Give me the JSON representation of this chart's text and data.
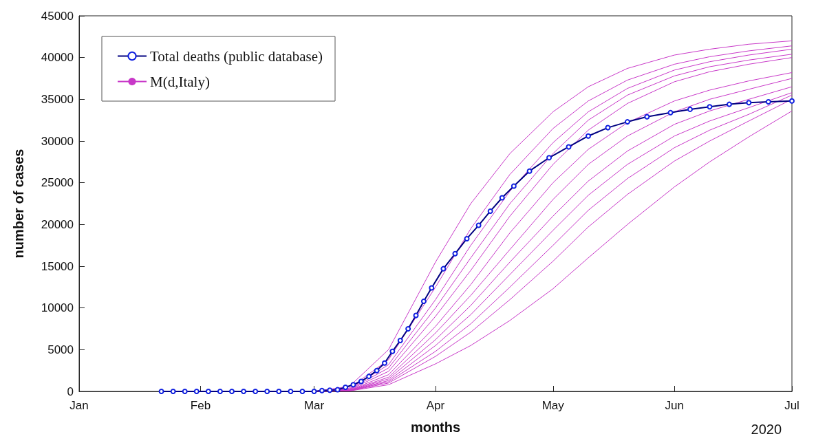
{
  "chart_data": {
    "type": "line",
    "xlabel": "months",
    "ylabel": "number of cases",
    "annotations": [
      "2020"
    ],
    "xlim": [
      "2020-01-01",
      "2020-07-01"
    ],
    "xticks": [
      {
        "value": "2020-01-01",
        "label": "Jan"
      },
      {
        "value": "2020-02-01",
        "label": "Feb"
      },
      {
        "value": "2020-03-01",
        "label": "Mar"
      },
      {
        "value": "2020-04-01",
        "label": "Apr"
      },
      {
        "value": "2020-05-01",
        "label": "May"
      },
      {
        "value": "2020-06-01",
        "label": "Jun"
      },
      {
        "value": "2020-07-01",
        "label": "Jul"
      }
    ],
    "ylim": [
      0,
      45000
    ],
    "yticks": [
      0,
      5000,
      10000,
      15000,
      20000,
      25000,
      30000,
      35000,
      40000,
      45000
    ],
    "grid": false,
    "legend": "top left",
    "series": [
      {
        "name": "Total deaths (public database)",
        "color": "#1020e0",
        "marker": "circle",
        "x": [
          "2020-01-22",
          "2020-01-25",
          "2020-01-28",
          "2020-01-31",
          "2020-02-03",
          "2020-02-06",
          "2020-02-09",
          "2020-02-12",
          "2020-02-15",
          "2020-02-18",
          "2020-02-21",
          "2020-02-24",
          "2020-02-27",
          "2020-03-01",
          "2020-03-03",
          "2020-03-05",
          "2020-03-07",
          "2020-03-09",
          "2020-03-11",
          "2020-03-13",
          "2020-03-15",
          "2020-03-17",
          "2020-03-19",
          "2020-03-21",
          "2020-03-23",
          "2020-03-25",
          "2020-03-27",
          "2020-03-29",
          "2020-03-31",
          "2020-04-03",
          "2020-04-06",
          "2020-04-09",
          "2020-04-12",
          "2020-04-15",
          "2020-04-18",
          "2020-04-21",
          "2020-04-25",
          "2020-04-30",
          "2020-05-05",
          "2020-05-10",
          "2020-05-15",
          "2020-05-20",
          "2020-05-25",
          "2020-05-31",
          "2020-06-05",
          "2020-06-10",
          "2020-06-15",
          "2020-06-20",
          "2020-06-25",
          "2020-07-01"
        ],
        "values": [
          0,
          0,
          0,
          0,
          0,
          0,
          0,
          0,
          0,
          0,
          0,
          0,
          0,
          0,
          100,
          150,
          200,
          500,
          800,
          1200,
          1800,
          2500,
          3400,
          4800,
          6100,
          7500,
          9100,
          10800,
          12400,
          14700,
          16500,
          18300,
          19900,
          21600,
          23200,
          24600,
          26400,
          28000,
          29300,
          30600,
          31600,
          32300,
          32900,
          33400,
          33800,
          34100,
          34400,
          34600,
          34700,
          34800
        ]
      },
      {
        "name": "M(d,Italy)",
        "color": "#c838c8",
        "marker": "none",
        "x": [
          "2020-03-01",
          "2020-03-10",
          "2020-03-20",
          "2020-04-01",
          "2020-04-10",
          "2020-04-20",
          "2020-05-01",
          "2020-05-10",
          "2020-05-20",
          "2020-06-01",
          "2020-06-10",
          "2020-06-20",
          "2020-07-01"
        ],
        "values": [
          0,
          600,
          5000,
          15500,
          22500,
          28500,
          33500,
          36500,
          38700,
          40300,
          41000,
          41600,
          42000
        ]
      },
      {
        "color": "#c838c8",
        "marker": "none",
        "x": [
          "2020-03-01",
          "2020-03-10",
          "2020-03-20",
          "2020-04-01",
          "2020-04-10",
          "2020-04-20",
          "2020-05-01",
          "2020-05-10",
          "2020-05-20",
          "2020-06-01",
          "2020-06-10",
          "2020-06-20",
          "2020-07-01"
        ],
        "values": [
          0,
          400,
          3800,
          12500,
          19500,
          26000,
          31500,
          34800,
          37300,
          39200,
          40100,
          40800,
          41400
        ]
      },
      {
        "color": "#c838c8",
        "marker": "none",
        "x": [
          "2020-03-01",
          "2020-03-10",
          "2020-03-20",
          "2020-04-01",
          "2020-04-10",
          "2020-04-20",
          "2020-05-01",
          "2020-05-10",
          "2020-05-20",
          "2020-06-01",
          "2020-06-10",
          "2020-06-20",
          "2020-07-01"
        ],
        "values": [
          0,
          300,
          3200,
          11000,
          17500,
          24000,
          29800,
          33500,
          36300,
          38500,
          39500,
          40300,
          41000
        ]
      },
      {
        "color": "#c838c8",
        "marker": "none",
        "x": [
          "2020-03-01",
          "2020-03-10",
          "2020-03-20",
          "2020-04-01",
          "2020-04-10",
          "2020-04-20",
          "2020-05-01",
          "2020-05-10",
          "2020-05-20",
          "2020-06-01",
          "2020-06-10",
          "2020-06-20",
          "2020-07-01"
        ],
        "values": [
          0,
          250,
          2800,
          10000,
          16000,
          22500,
          28500,
          32500,
          35500,
          37800,
          38900,
          39700,
          40400
        ]
      },
      {
        "color": "#c838c8",
        "marker": "none",
        "x": [
          "2020-03-01",
          "2020-03-10",
          "2020-03-20",
          "2020-04-01",
          "2020-04-10",
          "2020-04-20",
          "2020-05-01",
          "2020-05-10",
          "2020-05-20",
          "2020-06-01",
          "2020-06-10",
          "2020-06-20",
          "2020-07-01"
        ],
        "values": [
          0,
          200,
          2400,
          9000,
          14500,
          21000,
          27200,
          31300,
          34500,
          37100,
          38300,
          39200,
          40000
        ]
      },
      {
        "color": "#c838c8",
        "marker": "none",
        "x": [
          "2020-03-01",
          "2020-03-10",
          "2020-03-20",
          "2020-04-01",
          "2020-04-10",
          "2020-04-20",
          "2020-05-01",
          "2020-05-10",
          "2020-05-20",
          "2020-06-01",
          "2020-06-10",
          "2020-06-20",
          "2020-07-01"
        ],
        "values": [
          0,
          150,
          2000,
          7800,
          12800,
          19000,
          25000,
          29000,
          32200,
          34800,
          36100,
          37200,
          38200
        ]
      },
      {
        "color": "#c838c8",
        "marker": "none",
        "x": [
          "2020-03-01",
          "2020-03-10",
          "2020-03-20",
          "2020-04-01",
          "2020-04-10",
          "2020-04-20",
          "2020-05-01",
          "2020-05-10",
          "2020-05-20",
          "2020-06-01",
          "2020-06-10",
          "2020-06-20",
          "2020-07-01"
        ],
        "values": [
          0,
          120,
          1700,
          7000,
          11500,
          17000,
          23000,
          27200,
          30600,
          33500,
          35000,
          36200,
          37500
        ]
      },
      {
        "color": "#c838c8",
        "marker": "none",
        "x": [
          "2020-03-01",
          "2020-03-10",
          "2020-03-20",
          "2020-04-01",
          "2020-04-10",
          "2020-04-20",
          "2020-05-01",
          "2020-05-10",
          "2020-05-20",
          "2020-06-01",
          "2020-06-10",
          "2020-06-20",
          "2020-07-01"
        ],
        "values": [
          0,
          100,
          1500,
          6200,
          10300,
          15500,
          21000,
          25200,
          28800,
          32000,
          33600,
          35000,
          36500
        ]
      },
      {
        "color": "#c838c8",
        "marker": "none",
        "x": [
          "2020-03-01",
          "2020-03-10",
          "2020-03-20",
          "2020-04-01",
          "2020-04-10",
          "2020-04-20",
          "2020-05-01",
          "2020-05-10",
          "2020-05-20",
          "2020-06-01",
          "2020-06-10",
          "2020-06-20",
          "2020-07-01"
        ],
        "values": [
          0,
          90,
          1300,
          5500,
          9200,
          14000,
          19300,
          23500,
          27200,
          30600,
          32400,
          34000,
          35800
        ]
      },
      {
        "color": "#c838c8",
        "marker": "none",
        "x": [
          "2020-03-01",
          "2020-03-10",
          "2020-03-20",
          "2020-04-01",
          "2020-04-10",
          "2020-04-20",
          "2020-05-01",
          "2020-05-10",
          "2020-05-20",
          "2020-06-01",
          "2020-06-10",
          "2020-06-20",
          "2020-07-01"
        ],
        "values": [
          0,
          80,
          1150,
          4800,
          8100,
          12500,
          17500,
          21700,
          25500,
          29200,
          31300,
          33200,
          35500
        ]
      },
      {
        "color": "#c838c8",
        "marker": "none",
        "x": [
          "2020-03-01",
          "2020-03-10",
          "2020-03-20",
          "2020-04-01",
          "2020-04-10",
          "2020-04-20",
          "2020-05-01",
          "2020-05-10",
          "2020-05-20",
          "2020-06-01",
          "2020-06-10",
          "2020-06-20",
          "2020-07-01"
        ],
        "values": [
          0,
          70,
          1000,
          4200,
          7100,
          11000,
          15600,
          19700,
          23600,
          27600,
          30000,
          32400,
          35000
        ]
      },
      {
        "color": "#c838c8",
        "marker": "none",
        "x": [
          "2020-03-01",
          "2020-03-10",
          "2020-03-20",
          "2020-04-01",
          "2020-04-10",
          "2020-04-20",
          "2020-05-01",
          "2020-05-10",
          "2020-05-20",
          "2020-06-01",
          "2020-06-10",
          "2020-06-20",
          "2020-07-01"
        ],
        "values": [
          0,
          50,
          800,
          3300,
          5500,
          8500,
          12300,
          16000,
          20000,
          24500,
          27500,
          30500,
          33600
        ]
      }
    ]
  }
}
